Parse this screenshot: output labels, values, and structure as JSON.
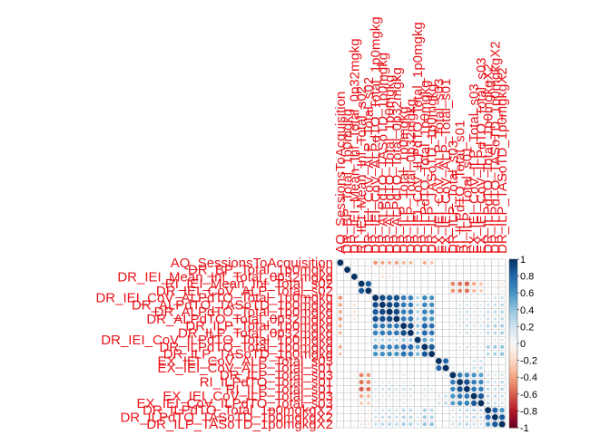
{
  "chart_data": {
    "type": "heatmap",
    "subtype": "correlation-matrix-circles",
    "variables": [
      "AQ_SessionsToAcquisition",
      "DR_BP_Total_1p0mgkg",
      "DR_IEI_Mean_Inf_Total_0p32mgkg",
      "RI_IEI_Mean_Inf_Total_s02",
      "DR_IEI_CoV_ALP_Total_s02",
      "DR_IEI_CoV_ALPdTO_Total_1p0mgkg",
      "DR_ALPdTO_TASoTD_1p0mgkg",
      "DR_ALPdTO_Total_1p0mgkg",
      "DR_ALPdTO_Total_0p32mgkg",
      "DR_ILP_Total_1p0mgkg",
      "DR_ILP_Total_0p32mgkg",
      "DR_IEI_CoV_ILPdTO_Total_1p0mgkg",
      "DR_ILPdTO_Total_1p0mgkg",
      "DR_ILP_TASoTD_1p0mgkg",
      "EX_IEI_CoV_ALP_Total_s03",
      "EX_IEI_CoV_ALP_Total_s01",
      "DR_ILP_Total_s03",
      "RI_ILPdTO_Total_s01",
      "RI_ILP_Total_s01",
      "EX_IEI_CoV_ILP_Total_s03",
      "EX_IEI_CoV_ILPdTO_Total_s03",
      "DR_ILPdTO_Total_1p0mgkgX2",
      "DR_ILPdTO_TASoTD_1p0mgkgX2",
      "DR_ILP_TASoTD_1p0mgkgX2"
    ],
    "corr": [
      [
        1.0,
        0.05,
        -0.1,
        0.02,
        -0.03,
        -0.45,
        -0.4,
        -0.38,
        -0.42,
        -0.35,
        -0.33,
        -0.05,
        -0.38,
        -0.3,
        0.05,
        0.04,
        -0.03,
        0.05,
        0.06,
        0.03,
        0.02,
        0.04,
        0.06,
        0.05
      ],
      [
        0.05,
        1.0,
        0.08,
        -0.05,
        -0.12,
        -0.05,
        -0.12,
        -0.1,
        -0.08,
        0.06,
        0.05,
        -0.07,
        0.04,
        0.05,
        -0.04,
        -0.03,
        0.02,
        0.1,
        0.12,
        0.06,
        0.04,
        0.02,
        0.03,
        0.03
      ],
      [
        -0.1,
        0.08,
        1.0,
        -0.08,
        0.05,
        -0.15,
        -0.2,
        -0.18,
        -0.15,
        -0.08,
        -0.06,
        0.02,
        -0.05,
        -0.04,
        0.03,
        0.02,
        -0.1,
        -0.12,
        -0.12,
        -0.1,
        -0.12,
        -0.08,
        -0.08,
        -0.07
      ],
      [
        0.02,
        -0.05,
        -0.08,
        1.0,
        0.85,
        0.03,
        0.02,
        0.01,
        0.03,
        0.04,
        0.03,
        0.02,
        0.02,
        0.03,
        -0.03,
        -0.02,
        -0.5,
        -0.55,
        -0.6,
        -0.4,
        -0.3,
        -0.15,
        -0.12,
        -0.18
      ],
      [
        -0.03,
        -0.12,
        0.05,
        0.85,
        1.0,
        0.02,
        0.01,
        0.02,
        0.02,
        0.05,
        0.04,
        0.01,
        0.03,
        0.04,
        -0.02,
        -0.03,
        -0.45,
        -0.5,
        -0.55,
        -0.35,
        -0.28,
        -0.12,
        -0.1,
        -0.15
      ],
      [
        -0.45,
        -0.05,
        -0.15,
        0.03,
        0.02,
        1.0,
        0.9,
        0.85,
        0.88,
        0.7,
        0.68,
        0.3,
        0.65,
        0.6,
        0.05,
        0.03,
        0.08,
        0.15,
        0.2,
        0.15,
        0.12,
        0.2,
        0.22,
        0.25
      ],
      [
        -0.4,
        -0.12,
        -0.2,
        0.02,
        0.01,
        0.9,
        1.0,
        0.92,
        0.89,
        0.72,
        0.7,
        0.3,
        0.66,
        0.62,
        0.05,
        0.04,
        0.1,
        0.18,
        0.22,
        0.17,
        0.15,
        0.22,
        0.25,
        0.28
      ],
      [
        -0.38,
        -0.1,
        -0.18,
        0.01,
        0.02,
        0.85,
        0.92,
        1.0,
        0.91,
        0.7,
        0.7,
        0.32,
        0.68,
        0.63,
        0.04,
        0.03,
        0.12,
        0.2,
        0.25,
        0.18,
        0.15,
        0.25,
        0.28,
        0.3
      ],
      [
        -0.42,
        -0.08,
        -0.15,
        0.03,
        0.02,
        0.88,
        0.89,
        0.91,
        1.0,
        0.72,
        0.73,
        0.3,
        0.66,
        0.6,
        0.05,
        0.04,
        0.1,
        0.18,
        0.22,
        0.15,
        0.12,
        0.22,
        0.25,
        0.28
      ],
      [
        -0.35,
        0.06,
        -0.08,
        0.04,
        0.05,
        0.7,
        0.72,
        0.7,
        0.72,
        1.0,
        0.9,
        0.4,
        0.8,
        0.75,
        0.05,
        0.06,
        0.15,
        0.2,
        0.25,
        0.2,
        0.18,
        0.3,
        0.32,
        0.35
      ],
      [
        -0.33,
        0.05,
        -0.06,
        0.03,
        0.04,
        0.68,
        0.7,
        0.7,
        0.73,
        0.9,
        1.0,
        0.38,
        0.78,
        0.72,
        0.06,
        0.05,
        0.12,
        0.18,
        0.22,
        0.18,
        0.15,
        0.28,
        0.3,
        0.33
      ],
      [
        -0.05,
        -0.07,
        0.02,
        0.02,
        0.01,
        0.3,
        0.3,
        0.32,
        0.3,
        0.4,
        0.38,
        1.0,
        0.55,
        0.45,
        0.05,
        0.04,
        0.05,
        0.08,
        0.1,
        0.08,
        0.06,
        0.15,
        0.18,
        0.2
      ],
      [
        -0.38,
        0.04,
        -0.05,
        0.02,
        0.03,
        0.65,
        0.66,
        0.68,
        0.66,
        0.8,
        0.78,
        0.55,
        1.0,
        0.85,
        0.06,
        0.05,
        0.1,
        0.15,
        0.2,
        0.15,
        0.12,
        0.35,
        0.38,
        0.4
      ],
      [
        -0.3,
        0.05,
        -0.04,
        0.03,
        0.04,
        0.6,
        0.62,
        0.63,
        0.6,
        0.75,
        0.72,
        0.45,
        0.85,
        1.0,
        0.05,
        0.04,
        0.08,
        0.12,
        0.18,
        0.12,
        0.1,
        0.3,
        0.35,
        0.42
      ],
      [
        0.05,
        -0.04,
        0.03,
        -0.03,
        -0.02,
        0.05,
        0.05,
        0.04,
        0.05,
        0.05,
        0.06,
        0.05,
        0.06,
        0.05,
        1.0,
        0.8,
        0.1,
        0.08,
        0.08,
        0.2,
        0.22,
        0.1,
        0.08,
        0.06
      ],
      [
        0.04,
        -0.03,
        0.02,
        -0.02,
        -0.03,
        0.03,
        0.04,
        0.03,
        0.04,
        0.06,
        0.05,
        0.04,
        0.05,
        0.04,
        0.8,
        1.0,
        0.15,
        0.1,
        0.12,
        0.25,
        0.28,
        0.08,
        0.06,
        0.05
      ],
      [
        -0.03,
        0.02,
        -0.1,
        -0.5,
        -0.45,
        0.08,
        0.1,
        0.12,
        0.1,
        0.15,
        0.12,
        0.05,
        0.1,
        0.08,
        0.1,
        0.15,
        1.0,
        0.7,
        0.65,
        0.6,
        0.55,
        0.2,
        0.18,
        0.22
      ],
      [
        0.05,
        0.1,
        -0.12,
        -0.55,
        -0.5,
        0.15,
        0.18,
        0.2,
        0.18,
        0.2,
        0.18,
        0.08,
        0.15,
        0.12,
        0.08,
        0.1,
        0.7,
        1.0,
        0.88,
        0.7,
        0.65,
        0.25,
        0.22,
        0.28
      ],
      [
        0.06,
        0.12,
        -0.12,
        -0.6,
        -0.55,
        0.2,
        0.22,
        0.25,
        0.22,
        0.25,
        0.22,
        0.1,
        0.2,
        0.18,
        0.08,
        0.12,
        0.65,
        0.88,
        1.0,
        0.72,
        0.68,
        0.28,
        0.25,
        0.3
      ],
      [
        0.03,
        0.06,
        -0.1,
        -0.4,
        -0.35,
        0.15,
        0.17,
        0.18,
        0.15,
        0.2,
        0.18,
        0.08,
        0.15,
        0.12,
        0.2,
        0.25,
        0.6,
        0.7,
        0.72,
        1.0,
        0.85,
        0.3,
        0.28,
        0.25
      ],
      [
        0.02,
        0.04,
        -0.12,
        -0.3,
        -0.28,
        0.12,
        0.15,
        0.15,
        0.12,
        0.18,
        0.15,
        0.06,
        0.12,
        0.1,
        0.22,
        0.28,
        0.55,
        0.65,
        0.68,
        0.85,
        1.0,
        0.28,
        0.25,
        0.22
      ],
      [
        0.04,
        0.02,
        -0.08,
        -0.15,
        -0.12,
        0.2,
        0.22,
        0.25,
        0.22,
        0.3,
        0.28,
        0.15,
        0.35,
        0.3,
        0.1,
        0.08,
        0.2,
        0.25,
        0.28,
        0.3,
        0.28,
        1.0,
        0.8,
        0.6
      ],
      [
        0.06,
        0.03,
        -0.08,
        -0.12,
        -0.1,
        0.22,
        0.25,
        0.28,
        0.25,
        0.32,
        0.3,
        0.18,
        0.38,
        0.35,
        0.08,
        0.06,
        0.18,
        0.22,
        0.25,
        0.28,
        0.25,
        0.8,
        1.0,
        0.85
      ],
      [
        0.05,
        0.03,
        -0.07,
        -0.18,
        -0.15,
        0.25,
        0.28,
        0.3,
        0.28,
        0.35,
        0.33,
        0.2,
        0.4,
        0.42,
        0.06,
        0.05,
        0.22,
        0.28,
        0.3,
        0.25,
        0.22,
        0.6,
        0.85,
        1.0
      ]
    ],
    "legend": {
      "ticks": [
        "1",
        "0.8",
        "0.6",
        "0.4",
        "0.2",
        "0",
        "-0.2",
        "-0.4",
        "-0.6",
        "-0.8",
        "-1"
      ],
      "range": [
        -1,
        1
      ],
      "placement": "right"
    },
    "colors": {
      "positive_max": "#053061",
      "neutral": "#f7f7f7",
      "negative_max": "#67001f",
      "label_text": "#e8141a",
      "grid": "#bbbbbb"
    }
  }
}
